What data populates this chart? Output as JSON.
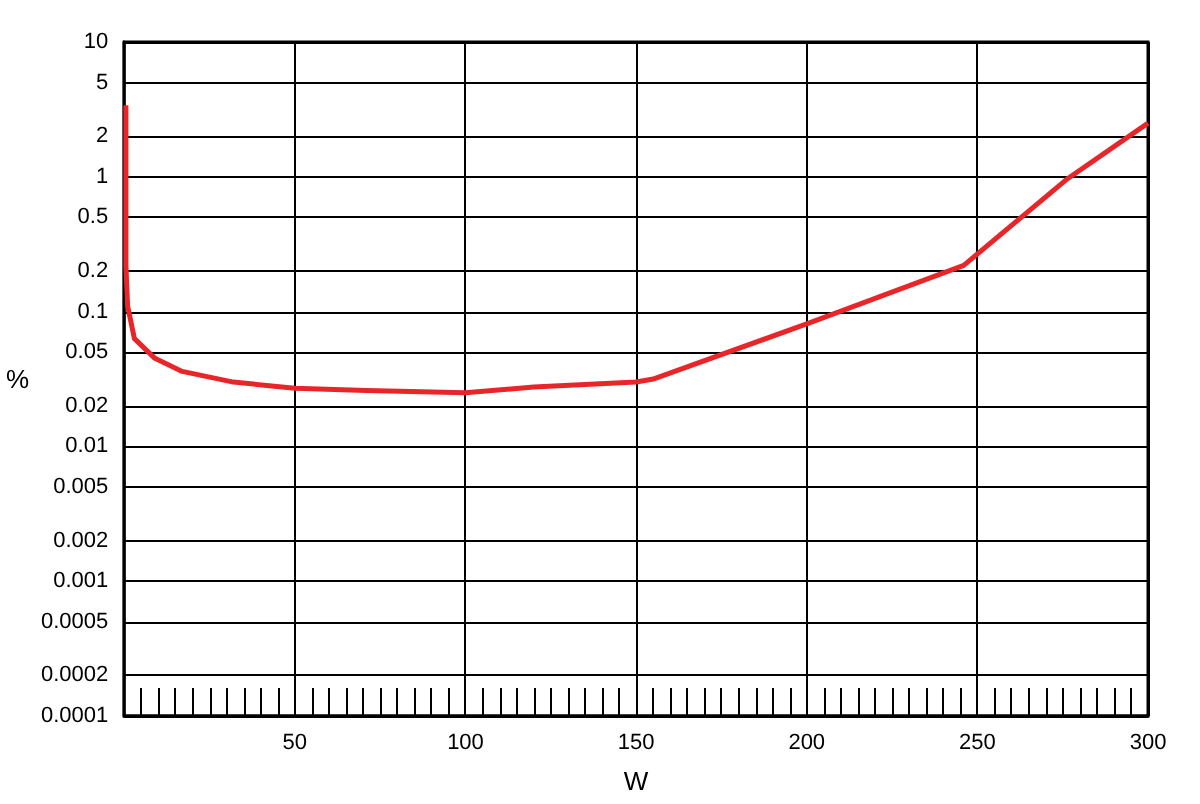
{
  "chart_data": {
    "type": "line",
    "xlabel": "W",
    "ylabel": "%",
    "x": [
      0.5,
      0.5,
      1,
      3,
      9,
      17,
      32,
      50,
      71,
      100,
      120,
      150,
      155,
      200,
      246,
      276,
      300
    ],
    "series": [
      {
        "color": "#e8262a",
        "values": [
          3.4,
          0.22,
          0.11,
          0.063,
          0.045,
          0.036,
          0.03,
          0.027,
          0.026,
          0.025,
          0.0276,
          0.03,
          0.0316,
          0.081,
          0.22,
          0.95,
          2.5
        ]
      }
    ],
    "xlim": [
      0,
      300
    ],
    "xticks": [
      50,
      100,
      150,
      200,
      250,
      300
    ],
    "ylim": [
      0.0001,
      10
    ],
    "yticks": [
      0.0001,
      0.0002,
      0.0005,
      0.001,
      0.002,
      0.005,
      0.01,
      0.02,
      0.05,
      0.1,
      0.2,
      0.5,
      1,
      2,
      5,
      10
    ],
    "log": "y",
    "grid": true,
    "marker": "none",
    "line_style": "solid"
  }
}
